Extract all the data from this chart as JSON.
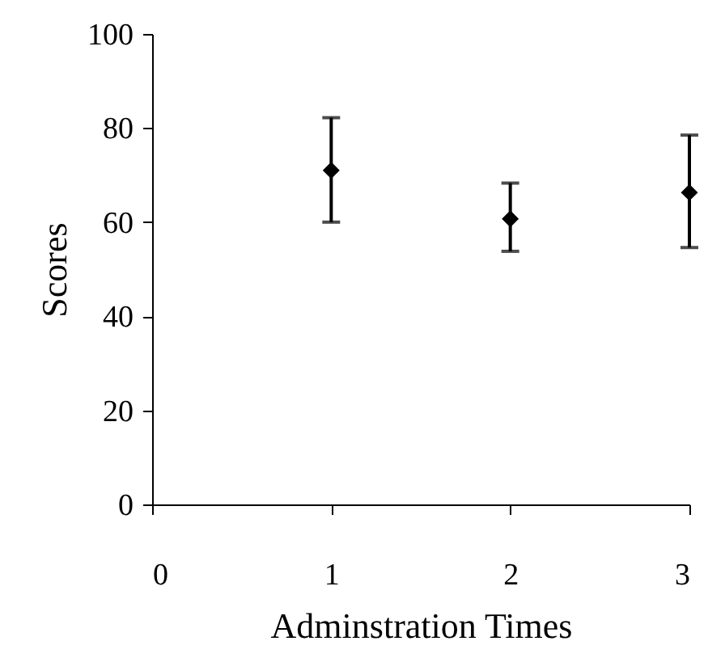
{
  "chart_data": {
    "type": "scatter",
    "xlabel": "Adminstration Times",
    "ylabel": "Scores",
    "x": [
      1,
      2,
      3
    ],
    "values": [
      71,
      60.7,
      66.3
    ],
    "errors": [
      [
        60,
        82.2
      ],
      [
        53.8,
        68.3
      ],
      [
        54.6,
        78.5
      ]
    ],
    "color": "#000000",
    "marker": "diamond",
    "xlim": [
      0,
      3
    ],
    "xticks": [
      0,
      1,
      2,
      3
    ],
    "ylim": [
      0,
      100
    ],
    "yticks": [
      0,
      20,
      40,
      60,
      80,
      100
    ],
    "grid": false
  }
}
